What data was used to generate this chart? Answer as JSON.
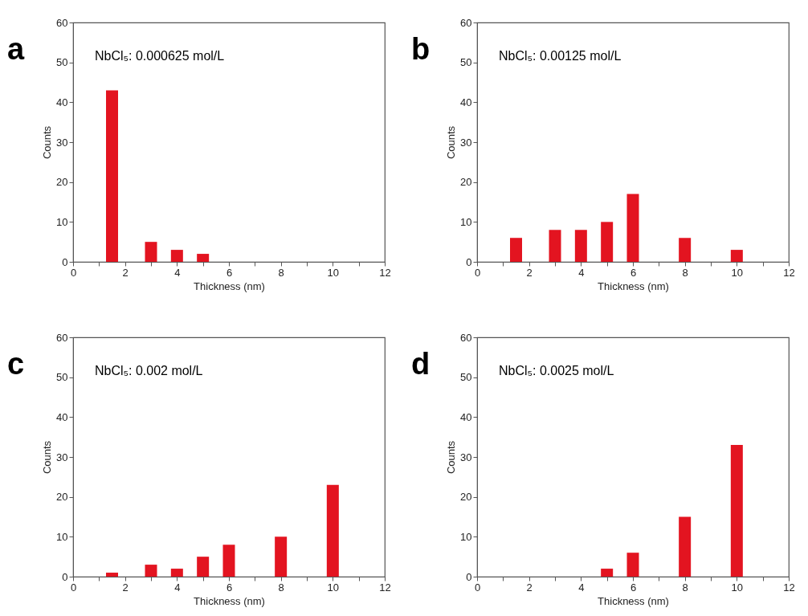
{
  "chart_data": [
    {
      "type": "bar",
      "title": "a",
      "xlabel": "Thickness (nm)",
      "ylabel": "Counts",
      "annotations": [
        "NbCl₅: 0.000625 mol/L"
      ],
      "x": [
        1.5,
        3,
        4,
        5
      ],
      "values": [
        43,
        5,
        3,
        2
      ],
      "color": "#e31420",
      "xlim": [
        0,
        12
      ],
      "xticks": [
        0,
        {
          "value": 1,
          "label": null
        },
        2,
        {
          "value": 3,
          "label": null
        },
        4,
        {
          "value": 5,
          "label": null
        },
        6,
        {
          "value": 7,
          "label": null
        },
        8,
        {
          "value": 9,
          "label": null
        },
        10,
        {
          "value": 11,
          "label": null
        },
        12
      ],
      "ylim": [
        0,
        60
      ],
      "yticks": [
        0,
        10,
        20,
        30,
        40,
        50,
        60
      ]
    },
    {
      "type": "bar",
      "title": "b",
      "xlabel": "Thickness (nm)",
      "ylabel": "Counts",
      "annotations": [
        "NbCl₅: 0.00125 mol/L"
      ],
      "x": [
        1.5,
        3,
        4,
        5,
        6,
        8,
        10
      ],
      "values": [
        6,
        8,
        8,
        10,
        17,
        6,
        3
      ],
      "color": "#e31420",
      "xlim": [
        0,
        12
      ],
      "xticks": [
        0,
        {
          "value": 1,
          "label": null
        },
        2,
        {
          "value": 3,
          "label": null
        },
        4,
        {
          "value": 5,
          "label": null
        },
        6,
        {
          "value": 7,
          "label": null
        },
        8,
        {
          "value": 9,
          "label": null
        },
        10,
        {
          "value": 11,
          "label": null
        },
        12
      ],
      "ylim": [
        0,
        60
      ],
      "yticks": [
        0,
        10,
        20,
        30,
        40,
        50,
        60
      ]
    },
    {
      "type": "bar",
      "title": "c",
      "xlabel": "Thickness (nm)",
      "ylabel": "Counts",
      "annotations": [
        "NbCl₅: 0.002 mol/L"
      ],
      "x": [
        1.5,
        3,
        4,
        5,
        6,
        8,
        10
      ],
      "values": [
        1,
        3,
        2,
        5,
        8,
        10,
        23
      ],
      "color": "#e31420",
      "xlim": [
        0,
        12
      ],
      "xticks": [
        0,
        {
          "value": 1,
          "label": null
        },
        2,
        {
          "value": 3,
          "label": null
        },
        4,
        {
          "value": 5,
          "label": null
        },
        6,
        {
          "value": 7,
          "label": null
        },
        8,
        {
          "value": 9,
          "label": null
        },
        10,
        {
          "value": 11,
          "label": null
        },
        12
      ],
      "ylim": [
        0,
        60
      ],
      "yticks": [
        0,
        10,
        20,
        30,
        40,
        50,
        60
      ]
    },
    {
      "type": "bar",
      "title": "d",
      "xlabel": "Thickness (nm)",
      "ylabel": "Counts",
      "annotations": [
        "NbCl₅: 0.0025 mol/L"
      ],
      "x": [
        5,
        6,
        8,
        10
      ],
      "values": [
        2,
        6,
        15,
        33
      ],
      "color": "#e31420",
      "xlim": [
        0,
        12
      ],
      "xticks": [
        0,
        {
          "value": 1,
          "label": null
        },
        2,
        {
          "value": 3,
          "label": null
        },
        4,
        {
          "value": 5,
          "label": null
        },
        6,
        {
          "value": 7,
          "label": null
        },
        8,
        {
          "value": 9,
          "label": null
        },
        10,
        {
          "value": 11,
          "label": null
        },
        12
      ],
      "ylim": [
        0,
        60
      ],
      "yticks": [
        0,
        10,
        20,
        30,
        40,
        50,
        60
      ]
    }
  ]
}
